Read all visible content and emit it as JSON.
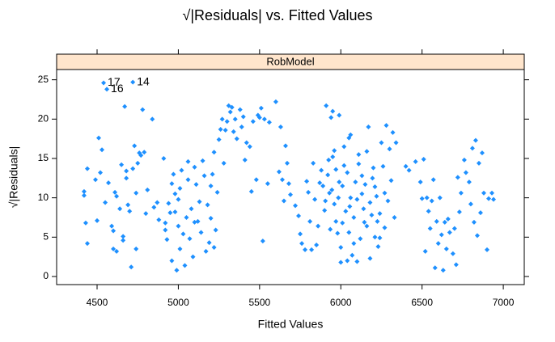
{
  "chart_data": {
    "type": "scatter",
    "title": "√|Residuals| vs. Fitted Values",
    "panel_title": "RobModel",
    "xlabel": "Fitted Values",
    "ylabel": "√|Residuals|",
    "xlim": [
      4251,
      7129
    ],
    "ylim": [
      -1.03,
      26.3
    ],
    "xticks": [
      4500,
      5000,
      5500,
      6000,
      6500,
      7000
    ],
    "yticks": [
      0,
      5,
      10,
      15,
      20,
      25
    ],
    "strip_color": "#ffe5cc",
    "series": [
      {
        "color": "#1e90ff",
        "x": [
          4420,
          4420,
          4430,
          4440,
          4440,
          4490,
          4500,
          4510,
          4520,
          4530,
          4540,
          4560,
          4550,
          4570,
          4590,
          4600,
          4600,
          4610,
          4620,
          4620,
          4640,
          4650,
          4660,
          4660,
          4670,
          4680,
          4680,
          4690,
          4700,
          4710,
          4720,
          4720,
          4730,
          4740,
          4740,
          4750,
          4760,
          4770,
          4780,
          4790,
          4800,
          4810,
          4840,
          4850,
          4870,
          4880,
          4910,
          4920,
          4920,
          4930,
          4940,
          4950,
          4960,
          4960,
          4970,
          4980,
          4980,
          4990,
          5000,
          5000,
          5010,
          5010,
          5020,
          5030,
          5040,
          5050,
          5060,
          5060,
          5070,
          5080,
          5090,
          5100,
          5100,
          5110,
          5120,
          5130,
          5140,
          5150,
          5160,
          5170,
          5180,
          5190,
          5200,
          5200,
          5210,
          5220,
          5220,
          5230,
          5240,
          5250,
          5260,
          5270,
          5280,
          5290,
          5300,
          5310,
          5320,
          5330,
          5340,
          5350,
          5360,
          5380,
          5390,
          5400,
          5410,
          5420,
          5440,
          5450,
          5460,
          5480,
          5490,
          5500,
          5510,
          5520,
          5530,
          5550,
          5560,
          5600,
          5620,
          5630,
          5640,
          5650,
          5660,
          5670,
          5680,
          5690,
          5720,
          5740,
          5750,
          5760,
          5780,
          5790,
          5800,
          5810,
          5820,
          5830,
          5840,
          5850,
          5860,
          5870,
          5880,
          5890,
          5900,
          5910,
          5920,
          5930,
          5940,
          5950,
          5960,
          5970,
          5980,
          5990,
          6000,
          5925,
          5945,
          5960,
          5905,
          5935,
          5970,
          5985,
          5950,
          5990,
          6000,
          6010,
          6020,
          6030,
          6040,
          6050,
          6060,
          6070,
          6080,
          6090,
          6100,
          6110,
          6120,
          6130,
          6140,
          6150,
          6160,
          6170,
          6180,
          6190,
          6200,
          6210,
          6220,
          6230,
          6240,
          6250,
          6260,
          6270,
          6280,
          6290,
          6300,
          6310,
          6320,
          6330,
          6340,
          6020,
          6040,
          6060,
          6080,
          6100,
          6130,
          6160,
          6180,
          6210,
          6240,
          6270,
          6010,
          6055,
          6145,
          6195,
          6225,
          6050,
          6110,
          6400,
          6420,
          6460,
          6490,
          6500,
          6510,
          6520,
          6530,
          6540,
          6550,
          6560,
          6570,
          6580,
          6590,
          6600,
          6610,
          6620,
          6630,
          6640,
          6650,
          6660,
          6670,
          6690,
          6700,
          6710,
          6720,
          6730,
          6740,
          6760,
          6770,
          6790,
          6800,
          6810,
          6820,
          6830,
          6840,
          6850,
          6860,
          6870,
          6880,
          6900,
          6910,
          6930,
          6940
        ],
        "values": [
          10.8,
          10.3,
          6.8,
          4.2,
          13.7,
          12.3,
          7.1,
          17.6,
          13.2,
          16.1,
          24.6,
          23.8,
          9.4,
          11.9,
          6.4,
          3.5,
          5.8,
          10.7,
          10.2,
          3.2,
          8.6,
          14.2,
          5.1,
          4.6,
          21.6,
          13.4,
          12.5,
          9.1,
          8.3,
          1.2,
          24.7,
          13.7,
          16.6,
          3.5,
          10.6,
          14.4,
          15.7,
          15.4,
          21.2,
          15.8,
          8.0,
          11.0,
          20.0,
          8.8,
          9.4,
          7.2,
          15.0,
          6.8,
          5.9,
          4.7,
          9.3,
          8.1,
          11.8,
          2.0,
          13.0,
          10.5,
          8.2,
          0.8,
          9.8,
          6.4,
          11.2,
          3.5,
          13.5,
          5.4,
          1.4,
          7.5,
          14.6,
          12.3,
          4.8,
          8.6,
          2.5,
          6.9,
          13.9,
          11.7,
          7.0,
          9.5,
          5.6,
          14.7,
          12.8,
          3.2,
          9.1,
          4.3,
          11.5,
          7.4,
          13.0,
          15.8,
          3.7,
          5.9,
          10.7,
          17.4,
          18.7,
          20.0,
          14.4,
          18.6,
          19.7,
          21.7,
          20.9,
          21.5,
          18.4,
          20.0,
          17.5,
          21.2,
          19.0,
          20.3,
          14.8,
          17.0,
          16.5,
          10.8,
          19.7,
          12.3,
          20.5,
          20.2,
          21.4,
          4.5,
          20.0,
          11.8,
          19.6,
          22.2,
          13.3,
          19.0,
          12.3,
          9.6,
          16.6,
          14.4,
          11.8,
          10.4,
          9.0,
          7.7,
          5.4,
          4.2,
          3.4,
          12.1,
          10.7,
          7.0,
          3.4,
          14.4,
          9.8,
          4.0,
          6.4,
          11.9,
          13.5,
          11.5,
          8.4,
          21.7,
          12.9,
          10.6,
          20.2,
          15.2,
          9.2,
          7.0,
          5.5,
          12.0,
          3.7,
          14.8,
          11.0,
          16.0,
          9.6,
          6.0,
          13.6,
          10.0,
          21.0,
          20.5,
          1.8,
          11.5,
          16.5,
          8.3,
          13.2,
          5.6,
          10.0,
          2.7,
          7.5,
          12.0,
          9.8,
          14.3,
          4.8,
          10.5,
          8.6,
          11.7,
          6.4,
          19.0,
          9.4,
          7.8,
          13.8,
          5.0,
          10.2,
          3.8,
          8.0,
          17.0,
          14.0,
          6.2,
          19.2,
          9.6,
          16.2,
          12.2,
          18.3,
          7.5,
          17.0,
          14.1,
          2.0,
          18.0,
          4.2,
          1.9,
          12.8,
          15.9,
          2.3,
          11.4,
          4.9,
          10.6,
          6.8,
          8.9,
          6.9,
          12.5,
          7.0,
          17.6,
          15.5,
          14.0,
          13.5,
          14.6,
          12.0,
          9.9,
          14.9,
          3.2,
          10.0,
          8.3,
          6.1,
          9.6,
          12.3,
          1.1,
          7.0,
          4.2,
          10.0,
          5.3,
          0.8,
          6.9,
          3.5,
          7.3,
          5.6,
          2.9,
          6.1,
          1.5,
          12.6,
          8.2,
          10.6,
          14.8,
          13.2,
          12.0,
          9.2,
          16.3,
          6.9,
          17.3,
          5.2,
          14.4,
          8.1,
          15.7,
          10.6,
          3.4,
          9.9,
          10.6,
          9.8
        ]
      }
    ],
    "annotations": [
      {
        "text": "17",
        "x": 4540,
        "y": 24.6
      },
      {
        "text": "16",
        "x": 4560,
        "y": 23.8
      },
      {
        "text": "14",
        "x": 4720,
        "y": 24.7
      }
    ]
  }
}
